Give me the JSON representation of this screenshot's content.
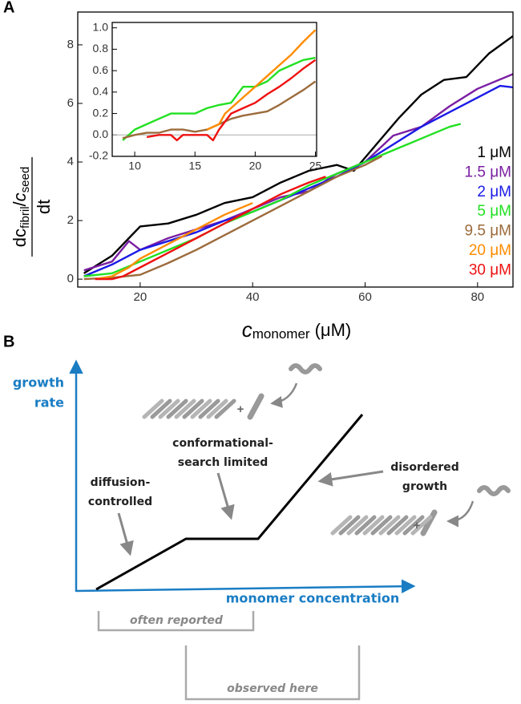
{
  "panel_labels": [
    "A",
    "B"
  ],
  "chart_data": [
    {
      "type": "line",
      "xlabel": [
        "c",
        "monomer",
        "(μM)"
      ],
      "ylabel": {
        "numerator": [
          "dc",
          "fibril",
          "/",
          "c",
          "seed"
        ],
        "denominator": "dt"
      },
      "xlim": [
        8.9,
        86.3
      ],
      "ylim": [
        -0.27,
        9.12
      ],
      "xticks": [
        20,
        40,
        60,
        80
      ],
      "yticks": [
        0,
        2,
        4,
        6,
        8
      ],
      "legend": "right",
      "series": [
        {
          "name": "1 μM",
          "color": "#000000",
          "x": [
            10,
            15,
            18,
            20,
            25,
            30,
            35,
            40,
            45,
            50,
            55,
            58,
            62,
            66,
            70,
            74,
            78,
            82,
            86.3
          ],
          "values": [
            0.2,
            0.8,
            1.4,
            1.8,
            1.9,
            2.2,
            2.6,
            2.8,
            3.3,
            3.7,
            3.9,
            3.7,
            4.6,
            5.5,
            6.3,
            6.8,
            6.9,
            7.7,
            8.3
          ]
        },
        {
          "name": "1.5 μM",
          "color": "#7b1fa2",
          "x": [
            10,
            15,
            18,
            20,
            25,
            30,
            35,
            40,
            45,
            50,
            55,
            60,
            65,
            70,
            75,
            80,
            86.3
          ],
          "values": [
            0.3,
            0.6,
            1.3,
            1.0,
            1.4,
            1.7,
            2.0,
            2.4,
            2.8,
            3.0,
            3.6,
            4.0,
            4.9,
            5.2,
            5.9,
            6.5,
            7.0
          ]
        },
        {
          "name": "2 μM",
          "color": "#1a1ae6",
          "x": [
            10,
            15,
            20,
            25,
            30,
            35,
            40,
            45,
            50,
            55,
            60,
            65,
            70,
            75,
            80,
            84,
            86.3
          ],
          "values": [
            0.1,
            0.5,
            1.0,
            1.3,
            1.6,
            2.0,
            2.3,
            2.7,
            3.1,
            3.5,
            4.0,
            4.6,
            5.2,
            5.7,
            6.2,
            6.6,
            6.55
          ]
        },
        {
          "name": "5 μM",
          "color": "#22e022",
          "x": [
            10,
            15,
            20,
            25,
            30,
            35,
            40,
            45,
            50,
            55,
            60,
            65,
            70,
            75,
            77
          ],
          "values": [
            0.1,
            0.2,
            0.6,
            1.0,
            1.4,
            1.9,
            2.3,
            2.7,
            3.2,
            3.6,
            4.0,
            4.4,
            4.8,
            5.2,
            5.3
          ]
        },
        {
          "name": "9.5 μM",
          "color": "#9c6b3c",
          "x": [
            10,
            15,
            20,
            25,
            30,
            35,
            40,
            45,
            50,
            55,
            60,
            63
          ],
          "values": [
            0,
            0.05,
            0.15,
            0.55,
            1.0,
            1.5,
            2.0,
            2.5,
            3.0,
            3.5,
            3.9,
            4.2
          ]
        },
        {
          "name": "20 μM",
          "color": "#ff8c00",
          "x": [
            12,
            15,
            18,
            20,
            25,
            30,
            35,
            40
          ],
          "values": [
            0,
            0.1,
            0.4,
            0.7,
            1.2,
            1.7,
            2.2,
            2.6
          ]
        },
        {
          "name": "30 μM",
          "color": "#ee1111",
          "x": [
            12,
            15,
            17,
            20,
            25,
            30,
            35,
            40,
            45,
            50,
            53
          ],
          "values": [
            0,
            0,
            0.1,
            0.4,
            0.9,
            1.4,
            1.9,
            2.4,
            2.9,
            3.3,
            3.5
          ]
        }
      ]
    },
    {
      "type": "line",
      "xlim": [
        8.13,
        25.1
      ],
      "ylim": [
        -0.2,
        1.05
      ],
      "xticks": [
        10,
        15,
        20,
        25
      ],
      "yticks": [
        {
          "value": -0.2,
          "label": "-0.2"
        },
        {
          "value": 0,
          "label": "0.0"
        },
        0.2,
        0.4,
        0.6,
        0.8,
        {
          "value": 1,
          "label": "1.0"
        }
      ],
      "zero_line": true,
      "series": [
        {
          "color": "#22e022",
          "x": [
            9,
            10,
            11,
            12,
            13,
            14,
            15,
            16,
            17,
            18,
            19,
            20,
            21,
            22,
            23,
            24,
            25
          ],
          "values": [
            -0.05,
            0.05,
            0.1,
            0.15,
            0.2,
            0.2,
            0.2,
            0.25,
            0.28,
            0.3,
            0.45,
            0.45,
            0.5,
            0.6,
            0.65,
            0.7,
            0.72
          ]
        },
        {
          "color": "#9c6b3c",
          "x": [
            9,
            10,
            11,
            12,
            13,
            14,
            15,
            16,
            17,
            18,
            19,
            20,
            21,
            22,
            23,
            24,
            25
          ],
          "values": [
            -0.03,
            0,
            0.02,
            0.02,
            0.05,
            0.05,
            0.03,
            0.05,
            0.1,
            0.15,
            0.18,
            0.2,
            0.22,
            0.28,
            0.35,
            0.42,
            0.5
          ]
        },
        {
          "color": "#ff8c00",
          "x": [
            16,
            17,
            17.5,
            18,
            19,
            20,
            21,
            22,
            23,
            24,
            25
          ],
          "values": [
            0.05,
            0.1,
            0.2,
            0.25,
            0.35,
            0.45,
            0.55,
            0.65,
            0.75,
            0.87,
            0.98
          ]
        },
        {
          "color": "#ee1111",
          "x": [
            11,
            12,
            13,
            13.5,
            14,
            15,
            16,
            16.5,
            17,
            18,
            19,
            20,
            21,
            22,
            23,
            24,
            25
          ],
          "values": [
            -0.02,
            0,
            0,
            -0.05,
            0,
            0,
            0,
            -0.05,
            0.05,
            0.2,
            0.25,
            0.3,
            0.38,
            0.45,
            0.53,
            0.62,
            0.7
          ]
        }
      ]
    }
  ],
  "diagram": {
    "y_axis_label": [
      "growth",
      "rate"
    ],
    "x_axis_label": "monomer concentration",
    "plus": [
      "+",
      "+"
    ],
    "diffusion": [
      "diffusion-",
      "controlled"
    ],
    "conformational": [
      "conformational-",
      "search limited"
    ],
    "disordered": [
      "disordered",
      "growth"
    ],
    "brackets": [
      "often reported",
      "observed here"
    ]
  }
}
